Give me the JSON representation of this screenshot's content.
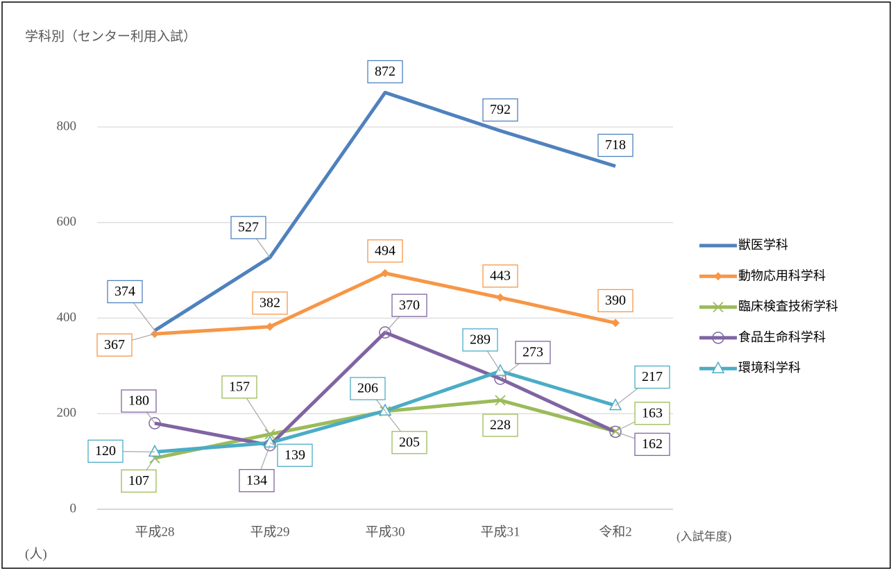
{
  "chart_data": {
    "type": "line",
    "title": "学科別（センター利用入試）",
    "y_axis_label": "(人)",
    "x_axis_label": "(入試年度)",
    "categories": [
      "平成28",
      "平成29",
      "平成30",
      "平成31",
      "令和2"
    ],
    "ylim": [
      0,
      1000
    ],
    "yticks": [
      0,
      200,
      400,
      600,
      800
    ],
    "grid": true,
    "legend": "right",
    "series": [
      {
        "name": "獣医学科",
        "color": "#4f81bd",
        "marker": "none",
        "values": [
          374,
          527,
          872,
          792,
          718
        ]
      },
      {
        "name": "動物応用科学科",
        "color": "#f79646",
        "marker": "diamond",
        "values": [
          367,
          382,
          494,
          443,
          390
        ]
      },
      {
        "name": "臨床検査技術学科",
        "color": "#9bbb59",
        "marker": "x",
        "values": [
          107,
          157,
          205,
          228,
          163
        ]
      },
      {
        "name": "食品生命科学科",
        "color": "#8064a2",
        "marker": "circle",
        "values": [
          180,
          134,
          370,
          273,
          162
        ]
      },
      {
        "name": "環境科学科",
        "color": "#4bacc6",
        "marker": "triangle",
        "values": [
          120,
          139,
          206,
          289,
          217
        ]
      }
    ]
  }
}
